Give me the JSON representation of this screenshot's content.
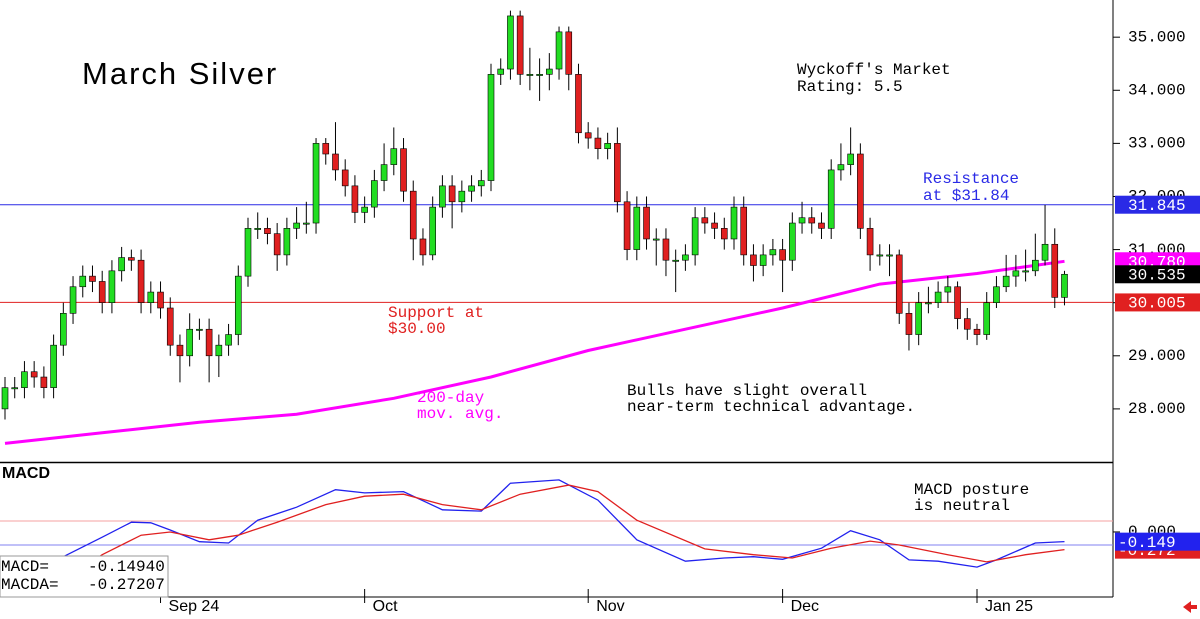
{
  "chart_data": {
    "type": "candlestick",
    "title": "March Silver",
    "ylim": [
      27,
      35.7
    ],
    "yticks": [
      {
        "value": 28,
        "label": "28.000"
      },
      {
        "value": 29,
        "label": "29.000"
      },
      {
        "value": 30,
        "label": "30.000"
      },
      {
        "value": 31,
        "label": "31.000"
      },
      {
        "value": 32,
        "label": "32.000"
      },
      {
        "value": 33,
        "label": "33.000"
      },
      {
        "value": 34,
        "label": "34.000"
      },
      {
        "value": 35,
        "label": "35.000"
      }
    ],
    "xticks": [
      {
        "value": 16,
        "label": "Sep 24"
      },
      {
        "value": 37,
        "label": "Oct"
      },
      {
        "value": 60,
        "label": "Nov"
      },
      {
        "value": 80,
        "label": "Dec"
      },
      {
        "value": 100,
        "label": "Jan 25"
      }
    ],
    "up_color": "#22dd22",
    "down_color": "#e02020",
    "open": [
      28.0,
      28.4,
      28.4,
      28.7,
      28.6,
      28.4,
      29.2,
      29.8,
      30.3,
      30.5,
      30.4,
      30.0,
      30.6,
      30.85,
      30.8,
      30.0,
      30.2,
      29.9,
      29.2,
      29.0,
      29.5,
      29.5,
      29.0,
      29.2,
      29.4,
      30.5,
      31.4,
      31.4,
      31.3,
      30.9,
      31.4,
      31.5,
      31.5,
      33.0,
      32.8,
      32.5,
      32.2,
      31.7,
      31.8,
      32.3,
      32.6,
      32.9,
      32.1,
      31.2,
      30.9,
      31.8,
      32.2,
      31.9,
      32.1,
      32.2,
      32.3,
      34.3,
      34.4,
      35.4,
      34.3,
      34.3,
      34.3,
      34.4,
      35.1,
      34.3,
      33.2,
      33.1,
      32.9,
      33.0,
      31.9,
      31.0,
      31.8,
      31.2,
      31.2,
      30.8,
      30.8,
      30.9,
      31.6,
      31.5,
      31.4,
      31.2,
      31.8,
      30.9,
      30.7,
      30.9,
      31.0,
      30.8,
      31.5,
      31.6,
      31.5,
      31.4,
      32.5,
      32.6,
      32.8,
      31.4,
      30.9,
      30.9,
      30.9,
      29.8,
      29.4,
      30.0,
      30.0,
      30.2,
      30.3,
      29.7,
      29.5,
      29.4,
      30.0,
      30.3,
      30.5,
      30.6,
      30.6,
      30.8,
      31.1,
      30.1
    ],
    "high": [
      28.6,
      28.6,
      28.9,
      28.9,
      28.8,
      29.4,
      30.0,
      30.5,
      30.7,
      30.7,
      30.6,
      30.8,
      31.05,
      31.0,
      31.0,
      30.4,
      30.4,
      30.1,
      29.4,
      29.8,
      29.7,
      29.7,
      29.4,
      29.6,
      30.7,
      31.6,
      31.7,
      31.6,
      31.5,
      31.6,
      31.8,
      31.9,
      33.1,
      33.1,
      33.4,
      32.7,
      32.4,
      32.0,
      32.5,
      33.0,
      33.3,
      33.1,
      32.3,
      31.4,
      32.0,
      32.4,
      32.4,
      32.3,
      32.4,
      32.5,
      34.5,
      34.6,
      35.5,
      35.5,
      34.8,
      34.6,
      34.7,
      35.2,
      35.2,
      34.5,
      33.4,
      33.3,
      33.2,
      33.3,
      32.1,
      32.0,
      32.0,
      31.4,
      31.4,
      31.0,
      31.1,
      31.8,
      31.8,
      31.7,
      31.6,
      32.0,
      32.0,
      31.1,
      31.1,
      31.2,
      31.2,
      31.7,
      31.9,
      31.8,
      31.7,
      32.7,
      33.0,
      33.3,
      33.0,
      31.6,
      31.1,
      31.1,
      31.0,
      30.0,
      30.2,
      30.3,
      30.4,
      30.5,
      30.4,
      29.9,
      29.6,
      30.2,
      30.5,
      30.9,
      30.9,
      31.0,
      31.3,
      31.84,
      31.4,
      30.6
    ],
    "low": [
      27.8,
      28.2,
      28.2,
      28.4,
      28.2,
      28.2,
      29.0,
      29.6,
      30.1,
      30.2,
      29.8,
      29.8,
      30.4,
      30.6,
      29.8,
      29.8,
      29.7,
      29.0,
      28.5,
      28.8,
      29.3,
      28.5,
      28.6,
      29.0,
      29.2,
      30.3,
      31.2,
      31.1,
      30.6,
      30.7,
      31.2,
      31.3,
      31.3,
      32.6,
      32.3,
      32.0,
      31.5,
      31.5,
      31.6,
      32.1,
      32.4,
      31.9,
      30.8,
      30.7,
      30.8,
      31.6,
      31.4,
      31.7,
      31.9,
      32.0,
      32.1,
      34.1,
      34.2,
      34.1,
      34.0,
      33.8,
      34.0,
      34.2,
      34.0,
      33.0,
      32.9,
      32.7,
      32.7,
      31.7,
      30.8,
      30.8,
      31.0,
      30.7,
      30.5,
      30.2,
      30.6,
      30.7,
      31.3,
      31.2,
      31.0,
      31.0,
      30.7,
      30.4,
      30.5,
      30.7,
      30.2,
      30.6,
      31.3,
      31.3,
      31.2,
      31.2,
      32.3,
      32.4,
      31.2,
      30.6,
      30.7,
      30.5,
      29.6,
      29.1,
      29.2,
      29.8,
      29.9,
      30.0,
      29.5,
      29.3,
      29.2,
      29.3,
      29.9,
      30.2,
      30.3,
      30.4,
      30.5,
      30.7,
      29.9,
      29.95
    ],
    "close": [
      28.4,
      28.4,
      28.7,
      28.6,
      28.4,
      29.2,
      29.8,
      30.3,
      30.5,
      30.4,
      30.0,
      30.6,
      30.85,
      30.8,
      30.0,
      30.2,
      29.9,
      29.2,
      29.0,
      29.5,
      29.5,
      29.0,
      29.2,
      29.4,
      30.5,
      31.4,
      31.4,
      31.3,
      30.9,
      31.4,
      31.5,
      31.5,
      33.0,
      32.8,
      32.5,
      32.2,
      31.7,
      31.8,
      32.3,
      32.6,
      32.9,
      32.1,
      31.2,
      30.9,
      31.8,
      32.2,
      31.9,
      32.1,
      32.2,
      32.3,
      34.3,
      34.4,
      35.4,
      34.3,
      34.3,
      34.3,
      34.4,
      35.1,
      34.3,
      33.2,
      33.1,
      32.9,
      33.0,
      31.9,
      31.0,
      31.8,
      31.2,
      31.2,
      30.8,
      30.8,
      30.9,
      31.6,
      31.5,
      31.4,
      31.2,
      31.8,
      30.9,
      30.7,
      30.9,
      31.0,
      30.8,
      31.5,
      31.6,
      31.5,
      31.4,
      32.5,
      32.6,
      32.8,
      31.4,
      30.9,
      30.9,
      30.9,
      29.8,
      29.4,
      30.0,
      30.0,
      30.2,
      30.3,
      29.7,
      29.5,
      29.4,
      30.0,
      30.3,
      30.5,
      30.6,
      30.6,
      30.8,
      31.1,
      30.1,
      30.535
    ],
    "ma": {
      "color": "#ff00ff",
      "x": [
        0,
        10,
        20,
        30,
        40,
        50,
        60,
        70,
        80,
        90,
        100,
        109
      ],
      "values": [
        27.35,
        27.55,
        27.75,
        27.9,
        28.2,
        28.6,
        29.1,
        29.5,
        29.9,
        30.35,
        30.55,
        30.78
      ]
    },
    "levels": [
      {
        "value": 31.845,
        "label": "31.845",
        "color": "#2a2ae6",
        "line": true
      },
      {
        "value": 30.78,
        "label": "30.780",
        "color": "#ff00ff",
        "line": false
      },
      {
        "value": 30.535,
        "label": "30.535",
        "color": "#000000",
        "line": false
      },
      {
        "value": 30.005,
        "label": "30.005",
        "color": "#e02020",
        "line": true
      }
    ],
    "annotations": [
      {
        "lines": [
          "Wyckoff's Market",
          "Rating: 5.5"
        ]
      },
      {
        "lines": [
          "Resistance",
          "at $31.84"
        ]
      },
      {
        "lines": [
          "Support at",
          "$30.00"
        ]
      },
      {
        "lines": [
          "200-day",
          "mov. avg."
        ]
      },
      {
        "lines": [
          "Bulls have slight overall",
          "near-term technical advantage."
        ]
      },
      {
        "lines": [
          "MACD posture",
          "is neutral"
        ]
      }
    ],
    "macd": {
      "title": "MACD",
      "ylim": [
        -1,
        1.06
      ],
      "yticks": [
        {
          "value": 0,
          "label": "0.000"
        }
      ],
      "series": [
        {
          "color": "#2222ee",
          "x": [
            6,
            10,
            13,
            15,
            17,
            20,
            23,
            26,
            30,
            34,
            37,
            41,
            45,
            49,
            52,
            57,
            61,
            65,
            70,
            74,
            77,
            80,
            84,
            87,
            90,
            93,
            96,
            100,
            102,
            106,
            109
          ],
          "values": [
            -0.38,
            -0.08,
            0.15,
            0.14,
            0.03,
            -0.15,
            -0.17,
            0.18,
            0.38,
            0.65,
            0.6,
            0.62,
            0.34,
            0.32,
            0.75,
            0.8,
            0.49,
            -0.12,
            -0.45,
            -0.4,
            -0.38,
            -0.42,
            -0.25,
            0.02,
            -0.12,
            -0.43,
            -0.45,
            -0.54,
            -0.43,
            -0.17,
            -0.149
          ]
        },
        {
          "color": "#e02020",
          "x": [
            7,
            10,
            14,
            17,
            21,
            24,
            28,
            33,
            37,
            41,
            45,
            49,
            53,
            58,
            61,
            65,
            72,
            77,
            81,
            85,
            89,
            92,
            97,
            101,
            105,
            109
          ],
          "values": [
            -0.66,
            -0.35,
            -0.05,
            0.0,
            -0.12,
            -0.05,
            0.15,
            0.42,
            0.55,
            0.58,
            0.42,
            0.34,
            0.58,
            0.72,
            0.62,
            0.18,
            -0.26,
            -0.35,
            -0.4,
            -0.25,
            -0.14,
            -0.2,
            -0.35,
            -0.46,
            -0.35,
            -0.272
          ]
        }
      ],
      "end_labels": [
        {
          "value": -0.272,
          "label": "-0.272",
          "color": "#e02020"
        },
        {
          "value": -0.149,
          "label": "-0.149",
          "color": "#2222ee"
        }
      ],
      "readout": [
        {
          "name": "MACD=",
          "value": "-0.14940"
        },
        {
          "name": "MACDA=",
          "value": "-0.27207"
        }
      ]
    }
  }
}
